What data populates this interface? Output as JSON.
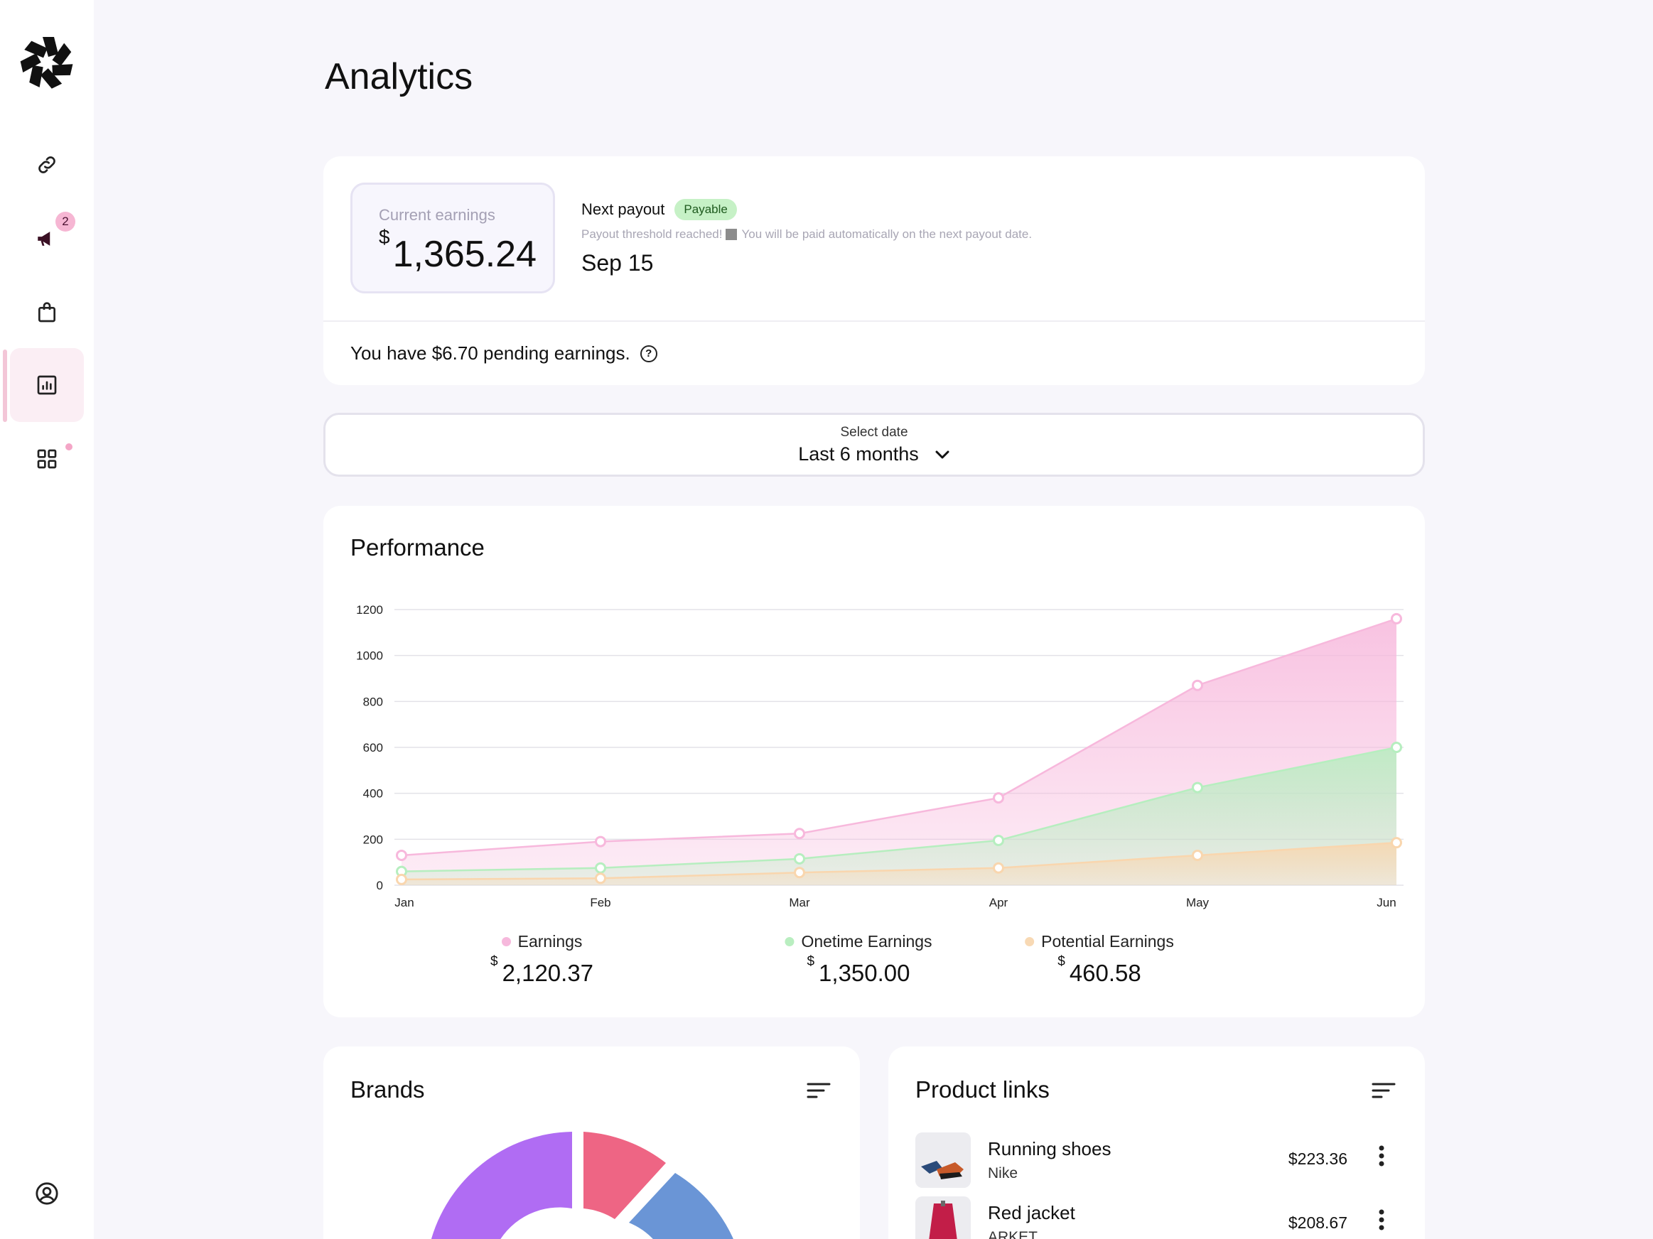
{
  "page": {
    "title": "Analytics"
  },
  "sidebar": {
    "items": [
      {
        "icon": "link-icon"
      },
      {
        "icon": "megaphone-icon",
        "badge": "2"
      },
      {
        "icon": "shopping-bag-icon"
      },
      {
        "icon": "analytics-icon",
        "active": true
      },
      {
        "icon": "apps-icon"
      }
    ],
    "footer_icon": "profile-icon"
  },
  "earnings": {
    "label": "Current earnings",
    "currency": "$",
    "value": "1,365.24",
    "next_payout_label": "Next payout",
    "status": "Payable",
    "note_a": "Payout threshold reached!",
    "note_b": "You will be paid automatically on the next payout date.",
    "date": "Sep 15",
    "pending": "You have $6.70 pending earnings."
  },
  "date_select": {
    "label": "Select date",
    "value": "Last 6 months"
  },
  "performance": {
    "title": "Performance",
    "totals": [
      {
        "name": "Earnings",
        "currency": "$",
        "value": "2,120.37",
        "color": "#f6b8dc"
      },
      {
        "name": "Onetime Earnings",
        "currency": "$",
        "value": "1,350.00",
        "color": "#b9eec0"
      },
      {
        "name": "Potential Earnings",
        "currency": "$",
        "value": "460.58",
        "color": "#f8d9b4"
      }
    ]
  },
  "chart_data": {
    "type": "area",
    "title": "Performance",
    "xlabel": "",
    "ylabel": "",
    "categories": [
      "Jan",
      "Feb",
      "Mar",
      "Apr",
      "May",
      "Jun"
    ],
    "ylim": [
      0,
      1200
    ],
    "yticks": [
      0,
      200,
      400,
      600,
      800,
      1000,
      1200
    ],
    "grid": true,
    "series": [
      {
        "name": "Earnings",
        "values": [
          130,
          190,
          225,
          380,
          870,
          1160
        ],
        "color": "#f7b8dc"
      },
      {
        "name": "Onetime Earnings",
        "values": [
          60,
          75,
          115,
          195,
          425,
          600
        ],
        "color": "#b6eebf"
      },
      {
        "name": "Potential Earnings",
        "values": [
          25,
          30,
          55,
          75,
          130,
          185
        ],
        "color": "#f9d6ae"
      }
    ]
  },
  "brands": {
    "title": "Brands",
    "icon": "filter-icon"
  },
  "product_links": {
    "title": "Product links",
    "icon": "filter-icon",
    "items": [
      {
        "name": "Running shoes",
        "brand": "Nike",
        "price": "$223.36"
      },
      {
        "name": "Red jacket",
        "brand": "ARKET",
        "price": "$208.67"
      }
    ]
  },
  "colors": {
    "accent_pink": "#f6b8dc",
    "accent_green": "#b9eec0",
    "accent_orange": "#f8d9b4",
    "donut_purple": "#b06cf3",
    "donut_pink": "#ee6584",
    "donut_blue": "#6a95d6"
  }
}
